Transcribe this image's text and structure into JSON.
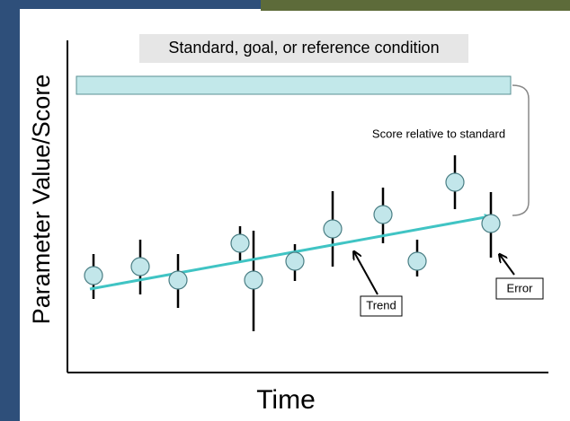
{
  "title": "Standard, goal, or reference condition",
  "annotation": "Score relative to standard",
  "y_axis_label": "Parameter Value/Score",
  "x_axis_label": "Time",
  "callouts": [
    "Trend",
    "Error"
  ]
}
